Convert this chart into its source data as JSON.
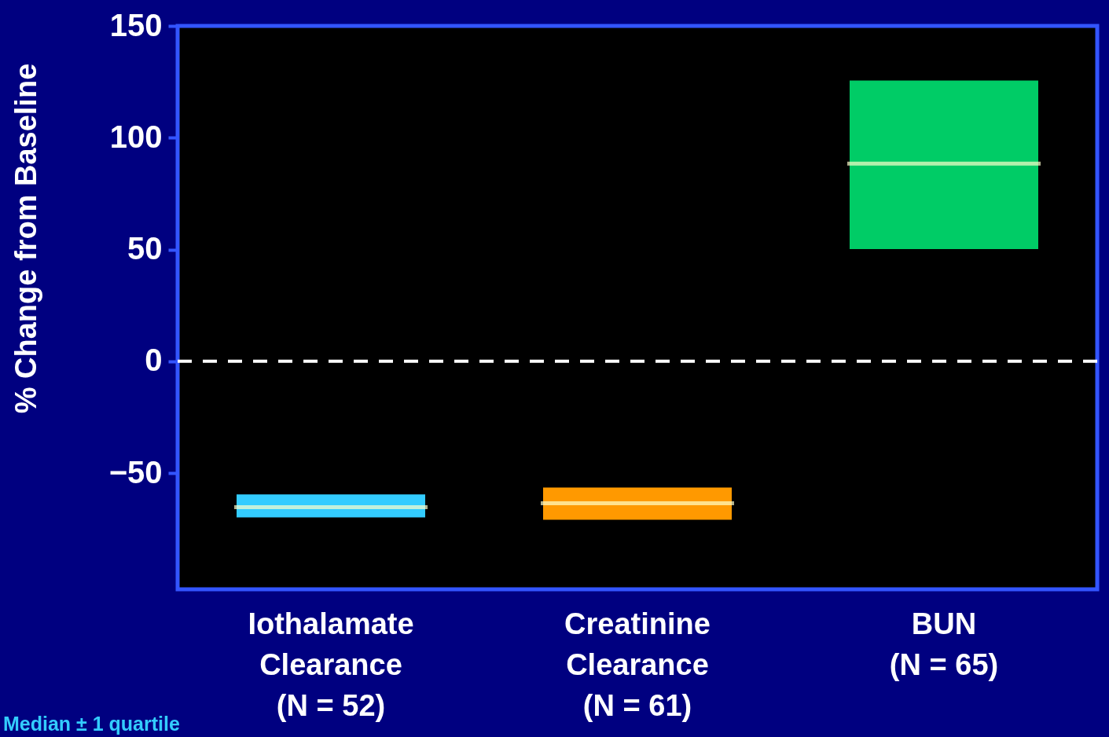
{
  "chart_data": {
    "type": "box",
    "ylabel": "% Change from Baseline",
    "categories": [
      "Iothalamate Clearance (N = 52)",
      "Creatinine Clearance (N = 61)",
      "BUN (N = 65)"
    ],
    "boxes": [
      {
        "low": -69.8,
        "q1": -69.8,
        "median": -65.3,
        "q3": -59.6,
        "high": -59.6
      },
      {
        "low": -70.9,
        "q1": -70.9,
        "median": -63.5,
        "q3": -56.5,
        "high": -56.5
      },
      {
        "low": 50.2,
        "q1": 50.2,
        "median": 88.4,
        "q3": 125.6,
        "high": 125.6
      }
    ],
    "colors": [
      "#33ccff",
      "#ff9900",
      "#00cc66"
    ],
    "ylim": [
      -102,
      150
    ],
    "yticks": [
      -50,
      0,
      50,
      100,
      150
    ],
    "ref_lines": [
      {
        "axis": "y",
        "value": 0,
        "color": "#ffffff",
        "line_style": "dashed"
      }
    ],
    "annotations": [
      "Median ± 1 quartile"
    ],
    "grid": false,
    "legend": false
  }
}
